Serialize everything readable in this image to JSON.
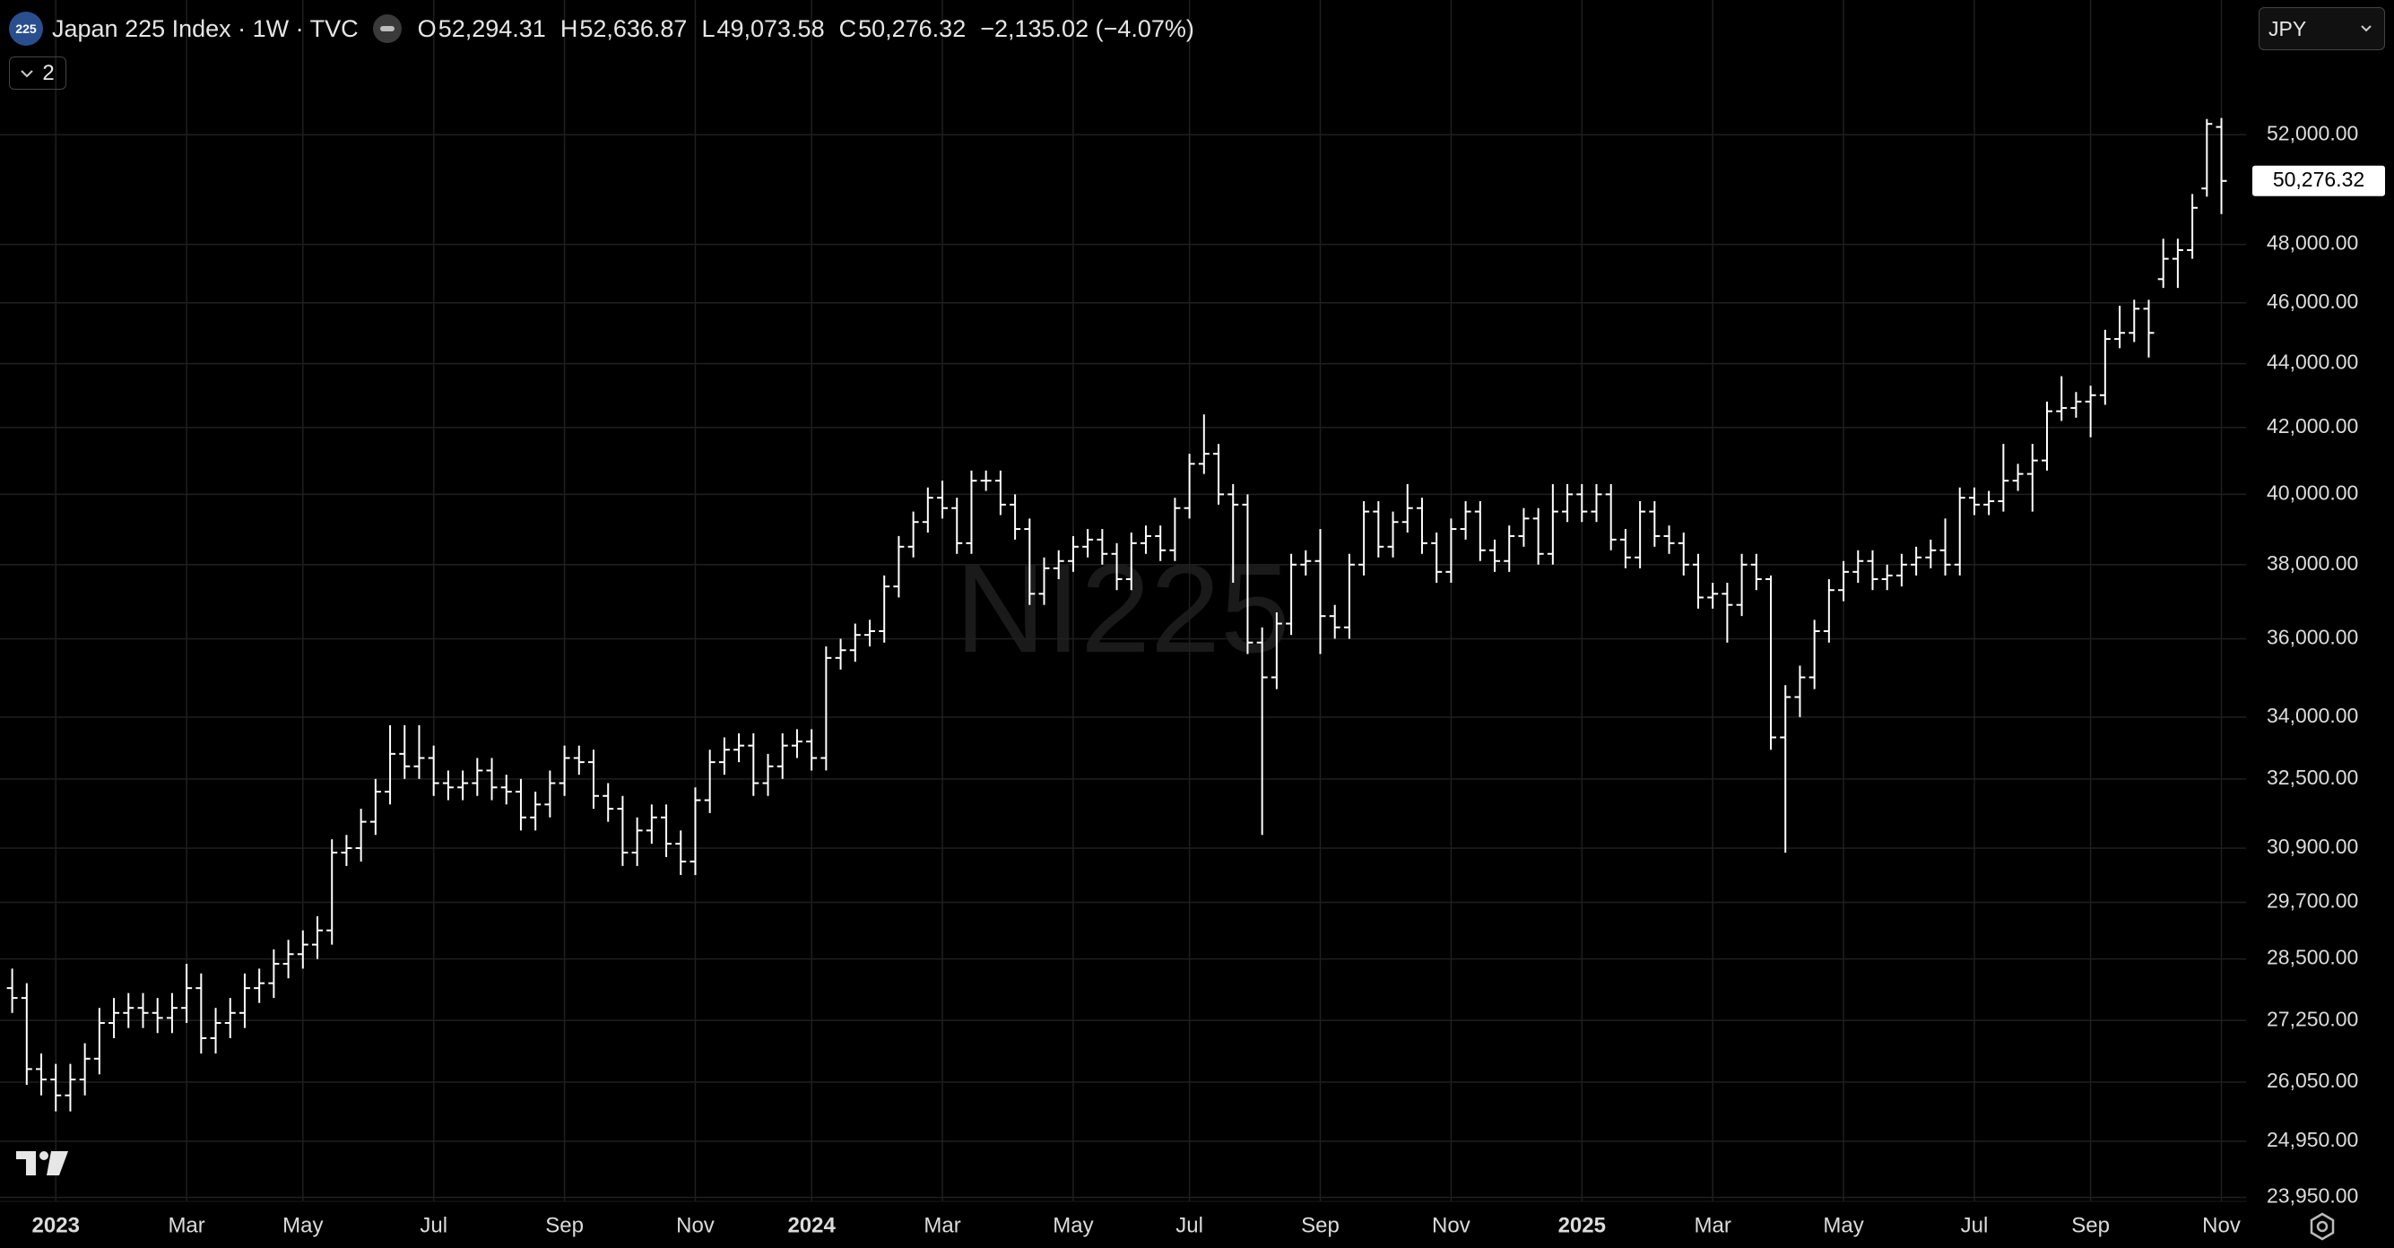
{
  "header": {
    "logo": "225",
    "title": "Japan 225 Index · 1W · TVC",
    "ohlc": [
      {
        "key": "O",
        "value": "52,294.31"
      },
      {
        "key": "H",
        "value": "52,636.87"
      },
      {
        "key": "L",
        "value": "49,073.58"
      },
      {
        "key": "C",
        "value": "50,276.32"
      }
    ],
    "change": "−2,135.02 (−4.07%)",
    "collapse_count": "2",
    "currency": "JPY"
  },
  "chart_data": {
    "type": "ohlc",
    "watermark": "NI225",
    "color": "#ffffff",
    "y_scale": "log",
    "grid": true,
    "ylim": [
      23880,
      57370
    ],
    "yticks": [
      {
        "value": 23950,
        "label": "23,950.00"
      },
      {
        "value": 24950,
        "label": "24,950.00"
      },
      {
        "value": 26050,
        "label": "26,050.00"
      },
      {
        "value": 27250,
        "label": "27,250.00"
      },
      {
        "value": 28500,
        "label": "28,500.00"
      },
      {
        "value": 29700,
        "label": "29,700.00"
      },
      {
        "value": 30900,
        "label": "30,900.00"
      },
      {
        "value": 32500,
        "label": "32,500.00"
      },
      {
        "value": 34000,
        "label": "34,000.00"
      },
      {
        "value": 36000,
        "label": "36,000.00"
      },
      {
        "value": 38000,
        "label": "38,000.00"
      },
      {
        "value": 40000,
        "label": "40,000.00"
      },
      {
        "value": 42000,
        "label": "42,000.00"
      },
      {
        "value": 44000,
        "label": "44,000.00"
      },
      {
        "value": 46000,
        "label": "46,000.00"
      },
      {
        "value": 48000,
        "label": "48,000.00"
      },
      {
        "value": 52000,
        "label": "52,000.00"
      }
    ],
    "xticks": [
      {
        "value": 3,
        "label": "2023",
        "year": true
      },
      {
        "value": 12,
        "label": "Mar"
      },
      {
        "value": 20,
        "label": "May"
      },
      {
        "value": 29,
        "label": "Jul"
      },
      {
        "value": 38,
        "label": "Sep"
      },
      {
        "value": 47,
        "label": "Nov"
      },
      {
        "value": 55,
        "label": "2024",
        "year": true
      },
      {
        "value": 64,
        "label": "Mar"
      },
      {
        "value": 73,
        "label": "May"
      },
      {
        "value": 81,
        "label": "Jul"
      },
      {
        "value": 90,
        "label": "Sep"
      },
      {
        "value": 99,
        "label": "Nov"
      },
      {
        "value": 108,
        "label": "2025",
        "year": true
      },
      {
        "value": 117,
        "label": "Mar"
      },
      {
        "value": 126,
        "label": "May"
      },
      {
        "value": 135,
        "label": "Jul"
      },
      {
        "value": 143,
        "label": "Sep"
      },
      {
        "value": 152,
        "label": "Nov"
      }
    ],
    "last_price": {
      "value": 50276.32,
      "label": "50,276.32"
    },
    "open": [
      27900,
      27700,
      26300,
      26100,
      25800,
      26100,
      26500,
      27200,
      27400,
      27500,
      27400,
      27300,
      27500,
      27900,
      26900,
      27200,
      27400,
      27900,
      28000,
      28400,
      28600,
      28800,
      29100,
      30800,
      30900,
      31500,
      32200,
      33100,
      32800,
      33000,
      32400,
      32300,
      32400,
      32700,
      32300,
      32200,
      31600,
      31900,
      32400,
      33000,
      32900,
      32100,
      31800,
      30800,
      31300,
      31600,
      31000,
      30600,
      32000,
      32900,
      33200,
      33300,
      32400,
      32800,
      33300,
      33400,
      33000,
      35500,
      35700,
      36100,
      36200,
      37400,
      38500,
      39200,
      39900,
      39600,
      38600,
      40400,
      40400,
      39700,
      39000,
      37200,
      37900,
      38100,
      38500,
      38700,
      38300,
      37600,
      38600,
      38800,
      38400,
      39600,
      40900,
      41200,
      40000,
      39700,
      35900,
      35000,
      36400,
      38000,
      38100,
      36600,
      36300,
      38000,
      39500,
      38500,
      39200,
      39600,
      38600,
      37800,
      39000,
      39500,
      38400,
      38100,
      38800,
      39300,
      38300,
      39500,
      40000,
      39500,
      40000,
      38700,
      38200,
      39500,
      38800,
      38600,
      38000,
      37100,
      37200,
      36900,
      38000,
      37600,
      33500,
      34500,
      35000,
      36200,
      37300,
      37800,
      38100,
      37600,
      37700,
      38000,
      38200,
      38400,
      38000,
      39900,
      39700,
      39800,
      40400,
      40600,
      41000,
      42500,
      42600,
      42800,
      43000,
      44800,
      45000,
      45800,
      46800,
      47500,
      47800,
      50000,
      52294.31
    ],
    "high": [
      28300,
      28000,
      26600,
      26400,
      26400,
      26800,
      27500,
      27700,
      27800,
      27800,
      27700,
      27800,
      28400,
      28200,
      27500,
      27700,
      28200,
      28300,
      28700,
      28900,
      29100,
      29400,
      31100,
      31200,
      31800,
      32500,
      33800,
      33800,
      33800,
      33300,
      32700,
      32700,
      33000,
      33000,
      32600,
      32500,
      32200,
      32700,
      33300,
      33300,
      33200,
      32400,
      32100,
      31600,
      31900,
      31900,
      31300,
      32300,
      33200,
      33500,
      33600,
      33600,
      33100,
      33600,
      33700,
      33700,
      35800,
      36000,
      36400,
      36500,
      37700,
      38800,
      39500,
      40200,
      40400,
      39900,
      40700,
      40700,
      40700,
      40000,
      39300,
      38200,
      38400,
      38800,
      39000,
      39000,
      38600,
      38900,
      39100,
      39100,
      39900,
      41200,
      42400,
      41500,
      40300,
      40000,
      36300,
      36700,
      38300,
      38400,
      39000,
      36900,
      38300,
      39800,
      39800,
      39500,
      40300,
      39900,
      38900,
      39300,
      39800,
      39800,
      38700,
      39100,
      39600,
      39600,
      40300,
      40300,
      40300,
      40300,
      40300,
      39000,
      39800,
      39800,
      39100,
      38900,
      38300,
      37500,
      37500,
      38300,
      38300,
      37700,
      34800,
      35300,
      36500,
      37600,
      38100,
      38400,
      38400,
      38000,
      38300,
      38500,
      38700,
      39300,
      40200,
      40200,
      40100,
      41500,
      40900,
      41500,
      42800,
      43600,
      43100,
      43300,
      45100,
      45900,
      46100,
      46100,
      48200,
      48200,
      49800,
      52600,
      52636.87
    ],
    "low": [
      27400,
      26000,
      25800,
      25500,
      25500,
      25800,
      26200,
      26900,
      27100,
      27100,
      27000,
      27000,
      27200,
      26600,
      26600,
      26900,
      27100,
      27600,
      27700,
      28100,
      28300,
      28500,
      28800,
      30500,
      30600,
      31200,
      31900,
      32500,
      32500,
      32100,
      32000,
      32000,
      32100,
      32000,
      31900,
      31300,
      31300,
      31600,
      32100,
      32600,
      31800,
      31500,
      30500,
      30500,
      31000,
      30700,
      30300,
      30300,
      31700,
      32600,
      32900,
      32100,
      32100,
      32500,
      33000,
      32700,
      32700,
      35200,
      35400,
      35800,
      35900,
      37100,
      38200,
      38900,
      39300,
      38300,
      38300,
      40100,
      39400,
      38700,
      36900,
      36900,
      37600,
      37800,
      38200,
      38000,
      37300,
      37300,
      38300,
      38100,
      38100,
      39300,
      40600,
      39700,
      37500,
      35600,
      31200,
      34700,
      36100,
      37700,
      35600,
      36000,
      36000,
      37700,
      38200,
      38200,
      38900,
      38300,
      37500,
      37500,
      38700,
      38100,
      37800,
      37800,
      38500,
      38000,
      38000,
      39200,
      39200,
      39200,
      38400,
      37900,
      37900,
      38500,
      38300,
      37700,
      36800,
      36800,
      35900,
      36600,
      37300,
      33200,
      30800,
      34000,
      34700,
      35900,
      37000,
      37500,
      37300,
      37300,
      37400,
      37700,
      37900,
      37700,
      37700,
      39400,
      39400,
      39500,
      40100,
      39500,
      40700,
      42200,
      42300,
      41700,
      42700,
      44500,
      44700,
      44200,
      46500,
      46500,
      47500,
      49700,
      49073.58
    ],
    "close": [
      27700,
      26300,
      26100,
      25800,
      26100,
      26500,
      27200,
      27400,
      27500,
      27400,
      27300,
      27500,
      27900,
      26900,
      27200,
      27400,
      27900,
      28000,
      28400,
      28600,
      28800,
      29100,
      30800,
      30900,
      31500,
      32200,
      33100,
      32800,
      33000,
      32400,
      32300,
      32400,
      32700,
      32300,
      32200,
      31600,
      31900,
      32400,
      33000,
      32900,
      32100,
      31800,
      30800,
      31300,
      31600,
      31000,
      30600,
      32000,
      32900,
      33200,
      33300,
      32400,
      32800,
      33300,
      33400,
      33000,
      35500,
      35700,
      36100,
      36200,
      37400,
      38500,
      39200,
      39900,
      39600,
      38600,
      40400,
      40400,
      39700,
      39000,
      37200,
      37900,
      38100,
      38500,
      38700,
      38300,
      37600,
      38600,
      38800,
      38400,
      39600,
      40900,
      41200,
      40000,
      39700,
      35900,
      35000,
      36400,
      38000,
      38100,
      36600,
      36300,
      38000,
      39500,
      38500,
      39200,
      39600,
      38600,
      37800,
      39000,
      39500,
      38400,
      38100,
      38800,
      39300,
      38300,
      39500,
      40000,
      39500,
      40000,
      38700,
      38200,
      39500,
      38800,
      38600,
      38000,
      37100,
      37200,
      36900,
      38000,
      37600,
      33500,
      34500,
      35000,
      36200,
      37300,
      37800,
      38100,
      37600,
      37700,
      38000,
      38200,
      38400,
      38000,
      39900,
      39700,
      39800,
      40400,
      40600,
      41000,
      42500,
      42600,
      42800,
      43000,
      44800,
      45000,
      45800,
      45000,
      47500,
      47800,
      49300,
      52411.34,
      50276.32
    ]
  }
}
